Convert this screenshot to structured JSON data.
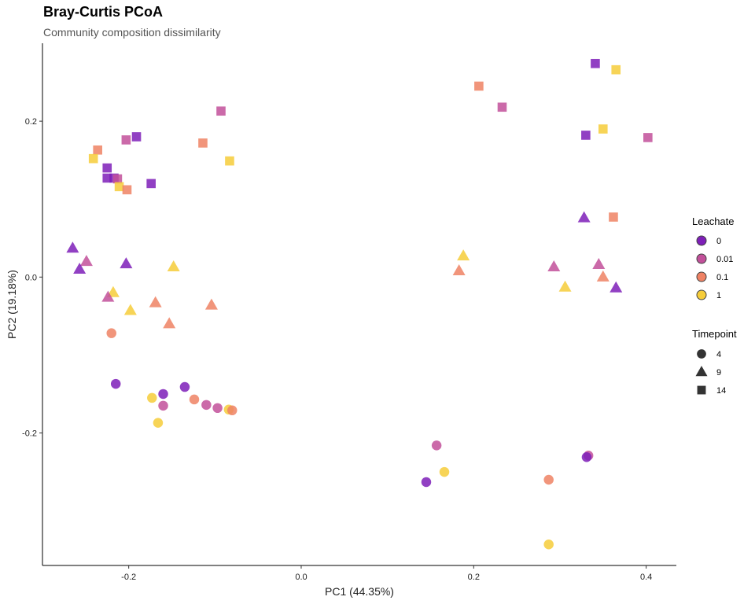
{
  "chart_data": {
    "type": "scatter",
    "title": "Bray-Curtis PCoA",
    "subtitle": "Community composition dissimilarity",
    "xlabel": "PC1 (44.35%)",
    "ylabel": "PC2 (19.18%)",
    "xlim": [
      -0.3,
      0.435
    ],
    "ylim": [
      -0.37,
      0.3
    ],
    "xticks": [
      -0.2,
      0.0,
      0.2,
      0.4
    ],
    "xtick_labels": [
      "-0.2",
      "0.0",
      "0.2",
      "0.4"
    ],
    "yticks": [
      -0.2,
      0.0,
      0.2
    ],
    "ytick_labels": [
      "-0.2",
      "0.0",
      "0.2"
    ],
    "grid": false,
    "legend_position": "right",
    "color_legend": {
      "title": "Leachate",
      "levels": [
        {
          "label": "0",
          "color": "#7E1FB8"
        },
        {
          "label": "0.01",
          "color": "#C2509A"
        },
        {
          "label": "0.1",
          "color": "#EF8264"
        },
        {
          "label": "1",
          "color": "#F6CD3A"
        }
      ]
    },
    "shape_legend": {
      "title": "Timepoint",
      "levels": [
        {
          "label": "4",
          "shape": "circle"
        },
        {
          "label": "9",
          "shape": "triangle"
        },
        {
          "label": "14",
          "shape": "square"
        }
      ]
    },
    "points": [
      {
        "x": 0.341,
        "y": 0.274,
        "leachate": "0",
        "timepoint": "14"
      },
      {
        "x": 0.365,
        "y": 0.266,
        "leachate": "1",
        "timepoint": "14"
      },
      {
        "x": 0.206,
        "y": 0.245,
        "leachate": "0.1",
        "timepoint": "14"
      },
      {
        "x": 0.233,
        "y": 0.218,
        "leachate": "0.01",
        "timepoint": "14"
      },
      {
        "x": 0.33,
        "y": 0.182,
        "leachate": "0",
        "timepoint": "14"
      },
      {
        "x": 0.35,
        "y": 0.19,
        "leachate": "1",
        "timepoint": "14"
      },
      {
        "x": 0.402,
        "y": 0.179,
        "leachate": "0.01",
        "timepoint": "14"
      },
      {
        "x": 0.362,
        "y": 0.077,
        "leachate": "0.1",
        "timepoint": "14"
      },
      {
        "x": -0.093,
        "y": 0.213,
        "leachate": "0.01",
        "timepoint": "14"
      },
      {
        "x": -0.191,
        "y": 0.18,
        "leachate": "0",
        "timepoint": "14"
      },
      {
        "x": -0.203,
        "y": 0.176,
        "leachate": "0.01",
        "timepoint": "14"
      },
      {
        "x": -0.114,
        "y": 0.172,
        "leachate": "0.1",
        "timepoint": "14"
      },
      {
        "x": -0.236,
        "y": 0.163,
        "leachate": "0.1",
        "timepoint": "14"
      },
      {
        "x": -0.241,
        "y": 0.152,
        "leachate": "1",
        "timepoint": "14"
      },
      {
        "x": -0.083,
        "y": 0.149,
        "leachate": "1",
        "timepoint": "14"
      },
      {
        "x": -0.225,
        "y": 0.14,
        "leachate": "0",
        "timepoint": "14"
      },
      {
        "x": -0.225,
        "y": 0.127,
        "leachate": "0",
        "timepoint": "14"
      },
      {
        "x": -0.217,
        "y": 0.127,
        "leachate": "0",
        "timepoint": "14"
      },
      {
        "x": -0.213,
        "y": 0.126,
        "leachate": "0.01",
        "timepoint": "14"
      },
      {
        "x": -0.174,
        "y": 0.12,
        "leachate": "0",
        "timepoint": "14"
      },
      {
        "x": -0.211,
        "y": 0.116,
        "leachate": "1",
        "timepoint": "14"
      },
      {
        "x": -0.202,
        "y": 0.112,
        "leachate": "0.1",
        "timepoint": "14"
      },
      {
        "x": 0.328,
        "y": 0.076,
        "leachate": "0",
        "timepoint": "9"
      },
      {
        "x": 0.188,
        "y": 0.027,
        "leachate": "1",
        "timepoint": "9"
      },
      {
        "x": 0.183,
        "y": 0.008,
        "leachate": "0.1",
        "timepoint": "9"
      },
      {
        "x": 0.293,
        "y": 0.013,
        "leachate": "0.01",
        "timepoint": "9"
      },
      {
        "x": 0.345,
        "y": 0.016,
        "leachate": "0.01",
        "timepoint": "9"
      },
      {
        "x": 0.35,
        "y": 0.0,
        "leachate": "0.1",
        "timepoint": "9"
      },
      {
        "x": 0.306,
        "y": -0.013,
        "leachate": "1",
        "timepoint": "9"
      },
      {
        "x": 0.365,
        "y": -0.014,
        "leachate": "0",
        "timepoint": "9"
      },
      {
        "x": -0.265,
        "y": 0.037,
        "leachate": "0",
        "timepoint": "9"
      },
      {
        "x": -0.249,
        "y": 0.02,
        "leachate": "0.01",
        "timepoint": "9"
      },
      {
        "x": -0.257,
        "y": 0.01,
        "leachate": "0",
        "timepoint": "9"
      },
      {
        "x": -0.203,
        "y": 0.017,
        "leachate": "0",
        "timepoint": "9"
      },
      {
        "x": -0.148,
        "y": 0.013,
        "leachate": "1",
        "timepoint": "9"
      },
      {
        "x": -0.218,
        "y": -0.02,
        "leachate": "1",
        "timepoint": "9"
      },
      {
        "x": -0.224,
        "y": -0.026,
        "leachate": "0.01",
        "timepoint": "9"
      },
      {
        "x": -0.169,
        "y": -0.033,
        "leachate": "0.1",
        "timepoint": "9"
      },
      {
        "x": -0.104,
        "y": -0.036,
        "leachate": "0.1",
        "timepoint": "9"
      },
      {
        "x": -0.198,
        "y": -0.043,
        "leachate": "1",
        "timepoint": "9"
      },
      {
        "x": -0.153,
        "y": -0.06,
        "leachate": "0.1",
        "timepoint": "9"
      },
      {
        "x": -0.22,
        "y": -0.072,
        "leachate": "0.1",
        "timepoint": "4"
      },
      {
        "x": -0.215,
        "y": -0.137,
        "leachate": "0",
        "timepoint": "4"
      },
      {
        "x": -0.135,
        "y": -0.141,
        "leachate": "0",
        "timepoint": "4"
      },
      {
        "x": -0.16,
        "y": -0.15,
        "leachate": "0",
        "timepoint": "4"
      },
      {
        "x": -0.173,
        "y": -0.155,
        "leachate": "1",
        "timepoint": "4"
      },
      {
        "x": -0.124,
        "y": -0.157,
        "leachate": "0.1",
        "timepoint": "4"
      },
      {
        "x": -0.16,
        "y": -0.165,
        "leachate": "0.01",
        "timepoint": "4"
      },
      {
        "x": -0.11,
        "y": -0.164,
        "leachate": "0.01",
        "timepoint": "4"
      },
      {
        "x": -0.097,
        "y": -0.168,
        "leachate": "0.01",
        "timepoint": "4"
      },
      {
        "x": -0.084,
        "y": -0.17,
        "leachate": "1",
        "timepoint": "4"
      },
      {
        "x": -0.08,
        "y": -0.171,
        "leachate": "0.1",
        "timepoint": "4"
      },
      {
        "x": -0.166,
        "y": -0.187,
        "leachate": "1",
        "timepoint": "4"
      },
      {
        "x": 0.157,
        "y": -0.216,
        "leachate": "0.01",
        "timepoint": "4"
      },
      {
        "x": 0.333,
        "y": -0.229,
        "leachate": "0.01",
        "timepoint": "4"
      },
      {
        "x": 0.331,
        "y": -0.231,
        "leachate": "0",
        "timepoint": "4"
      },
      {
        "x": 0.166,
        "y": -0.25,
        "leachate": "1",
        "timepoint": "4"
      },
      {
        "x": 0.287,
        "y": -0.26,
        "leachate": "0.1",
        "timepoint": "4"
      },
      {
        "x": 0.145,
        "y": -0.263,
        "leachate": "0",
        "timepoint": "4"
      },
      {
        "x": 0.287,
        "y": -0.343,
        "leachate": "1",
        "timepoint": "4"
      }
    ]
  }
}
